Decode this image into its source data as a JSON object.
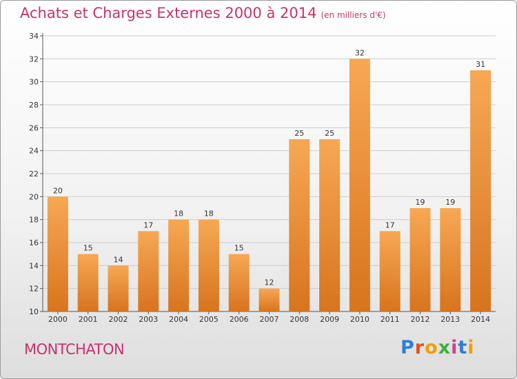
{
  "header": {
    "title": "Achats et Charges Externes 2000 à 2014",
    "unit": "(en milliers d'€)"
  },
  "footer": {
    "place": "MONTCHATON"
  },
  "logo": {
    "text": "Proxiti",
    "colors": [
      "#2f7fd6",
      "#e84c1c",
      "#f0a000",
      "#3fae3f",
      "#d63e8a",
      "#2f7fd6",
      "#f0a000"
    ]
  },
  "chart_data": {
    "type": "bar",
    "title": "Achats et Charges Externes 2000 à 2014",
    "subtitle": "(en milliers d'€)",
    "categories": [
      "2000",
      "2001",
      "2002",
      "2003",
      "2004",
      "2005",
      "2006",
      "2007",
      "2008",
      "2009",
      "2010",
      "2011",
      "2012",
      "2013",
      "2014"
    ],
    "values": [
      20,
      15,
      14,
      17,
      18,
      18,
      15,
      12,
      25,
      25,
      32,
      17,
      19,
      19,
      31
    ],
    "ylim": [
      10,
      34
    ],
    "yticks": [
      10,
      12,
      14,
      16,
      18,
      20,
      22,
      24,
      26,
      28,
      30,
      32,
      34
    ],
    "grid": true,
    "colors": {
      "bar_top": "#f7a854",
      "bar_bottom": "#d8741e",
      "grid": "#cccccc"
    }
  }
}
